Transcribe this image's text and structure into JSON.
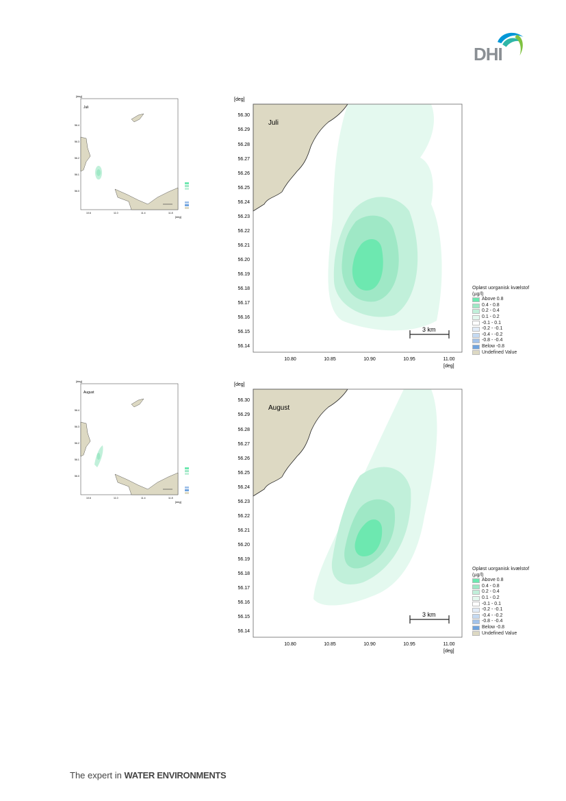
{
  "logo": {
    "text": "DHI",
    "icon": "dhi-wave-logo",
    "colors": [
      "#0097d7",
      "#2fb6a7",
      "#7fc241"
    ]
  },
  "footer": {
    "prefix": "The expert in ",
    "bold": "WATER ENVIRONMENTS"
  },
  "colors": {
    "land": "#ddd9c3",
    "coast": "#222222",
    "c1": "#dcf7ea",
    "c2": "#c1f0da",
    "c3": "#9fe8c6",
    "c4": "#6de8b0"
  },
  "axis": {
    "unit_top": "[deg]",
    "unit_right": "[deg]",
    "y_ticks": [
      "56.30",
      "56.29",
      "56.28",
      "56.27",
      "56.26",
      "56.25",
      "56.24",
      "56.23",
      "56.22",
      "56.21",
      "56.20",
      "56.19",
      "56.18",
      "56.17",
      "56.16",
      "56.15",
      "56.14"
    ],
    "x_ticks": [
      "10.80",
      "10.85",
      "10.90",
      "10.95",
      "11.00"
    ],
    "scale_bar": "3 km"
  },
  "legend": {
    "title_1": "Opløst uorganisk kvælstof",
    "title_2": "(µg/l)",
    "items": [
      {
        "label": "Above  0.8",
        "color": "#6de8b0"
      },
      {
        "label": "0.4 -  0.8",
        "color": "#9fe8c6"
      },
      {
        "label": "0.2 -  0.4",
        "color": "#c1f0da"
      },
      {
        "label": "0.1 -  0.2",
        "color": "#e4f9ef"
      },
      {
        "label": "-0.1 -  0.1",
        "color": "#ffffff"
      },
      {
        "label": "-0.2 - -0.1",
        "color": "#e2ecf8"
      },
      {
        "label": "-0.4 - -0.2",
        "color": "#c5daf2"
      },
      {
        "label": "-0.8 - -0.4",
        "color": "#a3c3ea"
      },
      {
        "label": "Below -0.8",
        "color": "#6fa3de"
      },
      {
        "label": "Undefined Value",
        "color": "#ddd9c3"
      }
    ]
  },
  "panels": [
    {
      "month": "Juli"
    },
    {
      "month": "August"
    }
  ]
}
